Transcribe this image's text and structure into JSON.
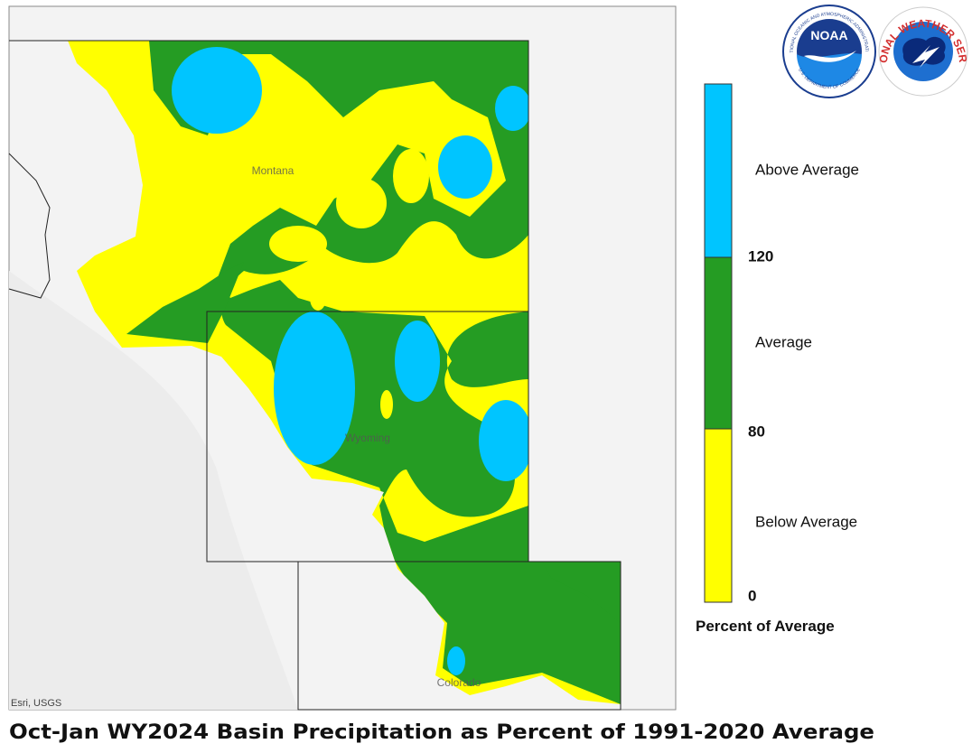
{
  "map": {
    "title": "Oct-Jan WY2024 Basin Precipitation as Percent of 1991-2020 Average",
    "attribution": "Esri, USGS",
    "state_labels": [
      "Montana",
      "Wyoming",
      "Colorado"
    ],
    "legend": {
      "title": "Percent of Average",
      "classes": [
        {
          "label": "Above Average",
          "color": "#00c5ff"
        },
        {
          "label": "Average",
          "color": "#259c23"
        },
        {
          "label": "Below Average",
          "color": "#ffff00"
        }
      ],
      "breaks": [
        "120",
        "80",
        "0"
      ]
    }
  },
  "logos": {
    "noaa": "NOAA",
    "noaa_ring_top": "NATIONAL OCEANIC AND ATMOSPHERIC ADMINISTRATION",
    "noaa_ring_bottom": "U.S. DEPARTMENT OF COMMERCE",
    "nws": "NATIONAL WEATHER SERVICE"
  }
}
